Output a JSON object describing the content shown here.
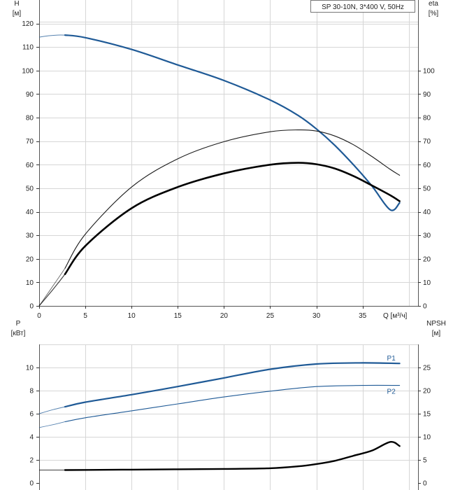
{
  "title_box": "SP 30-10N, 3*400 V, 50Hz",
  "chart_data": [
    {
      "type": "line",
      "panel": "top",
      "ylabel_left": "H",
      "yunit_left": "[м]",
      "ylabel_right": "eta",
      "yunit_right": "[%]",
      "xlabel": "Q [м³/ч]",
      "xlim": [
        0,
        41
      ],
      "ylim": [
        0,
        130
      ],
      "x_ticks": [
        0,
        5,
        10,
        15,
        20,
        25,
        30,
        35
      ],
      "y_ticks_left": [
        0,
        10,
        20,
        30,
        40,
        50,
        60,
        70,
        80,
        90,
        100,
        110,
        120
      ],
      "y_ticks_right": [
        0,
        10,
        20,
        30,
        40,
        50,
        60,
        70,
        80,
        90,
        100
      ],
      "grid": true,
      "series": [
        {
          "role": "H",
          "color": "#1f5a96",
          "width": 2.2,
          "ext_x": [
            0,
            1,
            2,
            2.8
          ],
          "ext_y": [
            114.2,
            114.8,
            115.1,
            115.1
          ],
          "x": [
            2.8,
            5,
            10,
            15,
            20,
            25,
            28,
            30,
            32,
            34,
            36,
            38,
            39
          ],
          "y": [
            115.1,
            114,
            109,
            102.4,
            95.8,
            87.5,
            81,
            75.2,
            68.2,
            60,
            51,
            40.8,
            43.8
          ]
        },
        {
          "role": "eta",
          "color": "#1a1a1a",
          "width": 1.1,
          "ext_x": [
            0,
            1.5,
            2.8
          ],
          "ext_y": [
            0,
            8.5,
            16
          ],
          "x": [
            2.8,
            5,
            10,
            15,
            20,
            25,
            28,
            30,
            32,
            34,
            36,
            38,
            39
          ],
          "y": [
            16,
            30.5,
            50.5,
            62.5,
            69.8,
            74,
            74.8,
            74.3,
            72.2,
            68.5,
            63.5,
            58,
            55.5
          ]
        },
        {
          "role": "eta_total",
          "color": "#000000",
          "width": 2.6,
          "ext_x": [
            0,
            1.5,
            2.8
          ],
          "ext_y": [
            0,
            7,
            13.5
          ],
          "x": [
            2.8,
            5,
            10,
            15,
            20,
            25,
            28,
            30,
            32,
            34,
            36,
            38,
            39
          ],
          "y": [
            13.5,
            25.5,
            41.5,
            50.5,
            56.3,
            60,
            60.8,
            60.2,
            58.4,
            55.2,
            51.2,
            47,
            44.5
          ]
        }
      ]
    },
    {
      "type": "line",
      "panel": "bottom",
      "ylabel_left": "P",
      "yunit_left": "[кВт]",
      "ylabel_right": "NPSH",
      "yunit_right": "[м]",
      "xlim": [
        0,
        41
      ],
      "ylim": [
        0,
        12
      ],
      "y_ticks_left": [
        0,
        2,
        4,
        6,
        8,
        10
      ],
      "y_ticks_right": [
        0,
        5,
        10,
        15,
        20,
        25
      ],
      "grid": true,
      "series": [
        {
          "name": "P1",
          "color": "#1f5a96",
          "width": 2.2,
          "ext_x": [
            0,
            1.5,
            2.8
          ],
          "ext_y": [
            6.0,
            6.35,
            6.6
          ],
          "x": [
            2.8,
            5,
            10,
            15,
            20,
            25,
            30,
            35,
            39
          ],
          "y": [
            6.6,
            7.0,
            7.65,
            8.35,
            9.1,
            9.85,
            10.3,
            10.4,
            10.35
          ]
        },
        {
          "name": "P2",
          "color": "#1f5a96",
          "width": 1.1,
          "ext_x": [
            0,
            1.5,
            2.8
          ],
          "ext_y": [
            4.8,
            5.05,
            5.3
          ],
          "x": [
            2.8,
            5,
            10,
            15,
            20,
            25,
            30,
            35,
            39
          ],
          "y": [
            5.3,
            5.65,
            6.25,
            6.85,
            7.45,
            7.95,
            8.35,
            8.45,
            8.45
          ]
        },
        {
          "role": "NPSH",
          "color": "#000000",
          "width": 2.4,
          "axis": "right",
          "ext_x": [
            0,
            2.8
          ],
          "ext_y": [
            2.8,
            2.8
          ],
          "x": [
            2.8,
            10,
            20,
            25,
            28,
            30,
            32,
            34,
            36,
            38,
            39
          ],
          "y": [
            2.8,
            2.9,
            3.05,
            3.2,
            3.6,
            4.1,
            4.8,
            5.9,
            7.0,
            8.9,
            8.0
          ]
        }
      ]
    }
  ]
}
